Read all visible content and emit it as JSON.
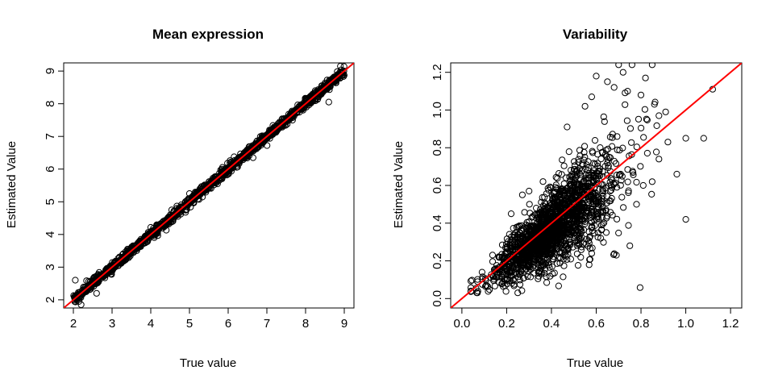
{
  "chart_data": [
    {
      "type": "scatter",
      "title": "Mean expression",
      "xlabel": "True value",
      "ylabel": "Estimated Value",
      "xlim": [
        1.75,
        9.25
      ],
      "ylim": [
        1.75,
        9.25
      ],
      "xticks": [
        "2",
        "3",
        "4",
        "5",
        "6",
        "7",
        "8",
        "9"
      ],
      "yticks": [
        "2",
        "3",
        "4",
        "5",
        "6",
        "7",
        "8",
        "9"
      ],
      "reference_line": {
        "intercept": 0,
        "slope": 1,
        "color": "#ff0000"
      },
      "point_cloud": {
        "n": 1400,
        "x_range": [
          2.0,
          9.0
        ],
        "relation": "y ≈ x",
        "spread": 0.07
      },
      "points": [
        [
          2.05,
          2.6
        ],
        [
          2.2,
          1.85
        ],
        [
          2.6,
          2.2
        ],
        [
          8.6,
          8.05
        ],
        [
          8.9,
          9.15
        ],
        [
          8.25,
          8.4
        ],
        [
          5.0,
          5.25
        ],
        [
          3.4,
          3.55
        ],
        [
          4.7,
          4.55
        ]
      ]
    },
    {
      "type": "scatter",
      "title": "Variability",
      "xlabel": "True value",
      "ylabel": "Estimated Value",
      "xlim": [
        -0.05,
        1.25
      ],
      "ylim": [
        -0.05,
        1.25
      ],
      "xticks": [
        "0.0",
        "0.2",
        "0.4",
        "0.6",
        "0.8",
        "1.0",
        "1.2"
      ],
      "yticks": [
        "0.0",
        "0.2",
        "0.4",
        "0.6",
        "0.8",
        "1.0",
        "1.2"
      ],
      "reference_line": {
        "intercept": 0,
        "slope": 1,
        "color": "#ff0000"
      },
      "point_cloud": {
        "n": 1800,
        "x_range": [
          0.04,
          0.95
        ],
        "center": 0.38,
        "relation": "y ≈ x",
        "spread": 0.1
      },
      "points": [
        [
          0.04,
          0.04
        ],
        [
          0.07,
          0.09
        ],
        [
          0.11,
          0.07
        ],
        [
          1.12,
          1.11
        ],
        [
          1.0,
          0.42
        ],
        [
          1.0,
          0.85
        ],
        [
          1.08,
          0.85
        ],
        [
          0.96,
          0.66
        ],
        [
          0.92,
          0.83
        ],
        [
          0.88,
          0.74
        ],
        [
          0.85,
          1.24
        ],
        [
          0.7,
          1.24
        ],
        [
          0.76,
          1.24
        ],
        [
          0.72,
          1.2
        ],
        [
          0.68,
          1.12
        ],
        [
          0.6,
          1.18
        ],
        [
          0.58,
          1.07
        ],
        [
          0.82,
          1.17
        ],
        [
          0.86,
          1.03
        ],
        [
          0.8,
          1.08
        ],
        [
          0.74,
          1.1
        ],
        [
          0.65,
          1.15
        ],
        [
          0.91,
          0.99
        ],
        [
          0.88,
          0.97
        ],
        [
          0.55,
          1.02
        ],
        [
          0.47,
          0.91
        ],
        [
          0.69,
          0.23
        ],
        [
          0.62,
          0.32
        ],
        [
          0.58,
          0.24
        ],
        [
          0.75,
          0.28
        ],
        [
          0.78,
          0.5
        ],
        [
          0.81,
          0.6
        ],
        [
          0.85,
          0.62
        ],
        [
          0.09,
          0.14
        ],
        [
          0.14,
          0.12
        ],
        [
          0.18,
          0.08
        ],
        [
          0.23,
          0.1
        ],
        [
          0.22,
          0.45
        ],
        [
          0.27,
          0.55
        ],
        [
          0.3,
          0.57
        ]
      ]
    }
  ]
}
